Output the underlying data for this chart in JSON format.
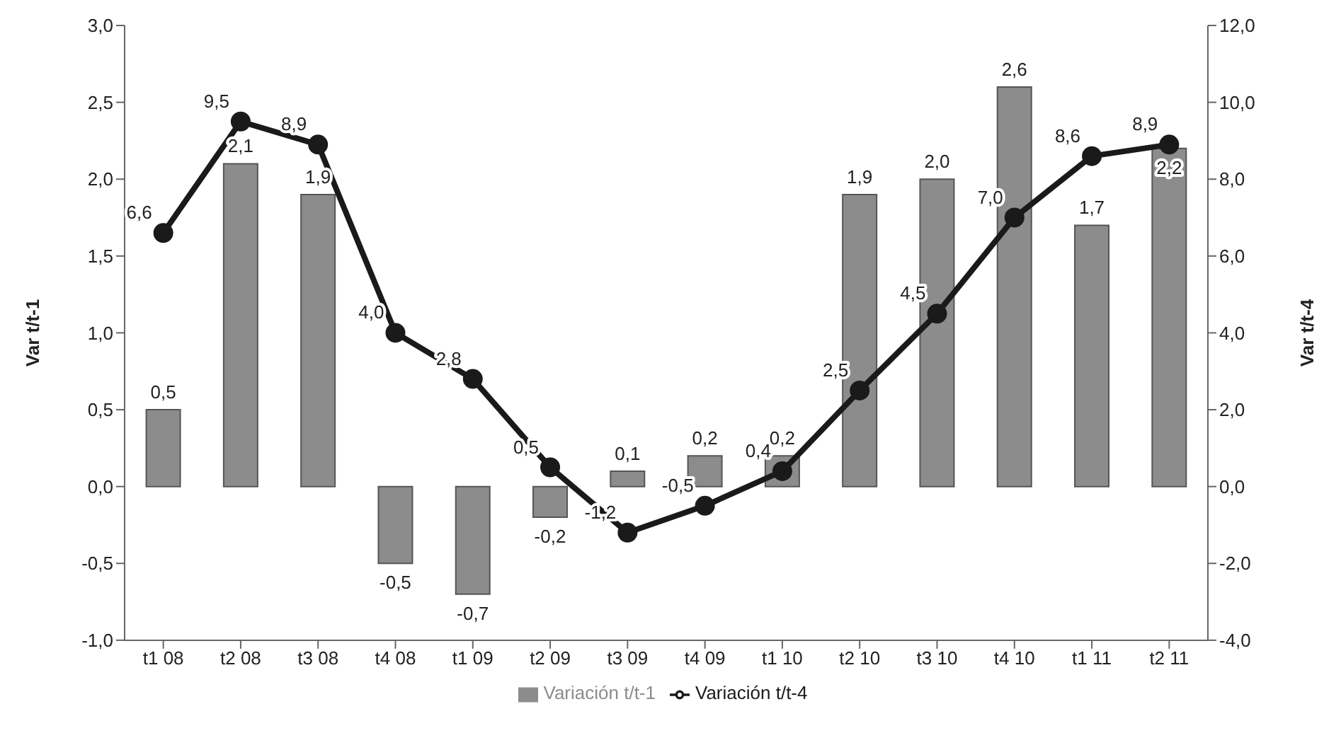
{
  "chart_data": {
    "type": "bar",
    "categories": [
      "t1 08",
      "t2 08",
      "t3 08",
      "t4 08",
      "t1 09",
      "t2 09",
      "t3 09",
      "t4 09",
      "t1 10",
      "t2 10",
      "t3 10",
      "t4 10",
      "t1 11",
      "t2 11"
    ],
    "series": [
      {
        "name": "Variación t/t-1",
        "color": "#8c8c8c",
        "values": [
          0.5,
          2.1,
          1.9,
          -0.5,
          -0.7,
          -0.2,
          0.1,
          0.2,
          0.2,
          1.9,
          2.0,
          2.6,
          1.7,
          2.2
        ],
        "value_labels": [
          "0,5",
          "2,1",
          "1,9",
          "-0,5",
          "-0,7",
          "-0,2",
          "0,1",
          "0,2",
          "0,2",
          "1,9",
          "2,0",
          "2,6",
          "1,7",
          "2,2"
        ]
      },
      {
        "name": "Variación t/t-4",
        "type": "line",
        "axis": "y2",
        "color": "#1a1a1a",
        "marker": "circle",
        "values": [
          6.6,
          9.5,
          8.9,
          4.0,
          2.8,
          0.5,
          -1.2,
          -0.5,
          0.4,
          2.5,
          4.5,
          7.0,
          8.6,
          8.9
        ],
        "value_labels": [
          "6,6",
          "9,5",
          "8,9",
          "4,0",
          "2,8",
          "0,5",
          "-1,2",
          "-0,5",
          "0,4",
          "2,5",
          "4,5",
          "7,0",
          "8,6",
          "8,9"
        ]
      }
    ],
    "ylabel": "Var t/t-1",
    "y2label": "Var t/t-4",
    "ylim": [
      -1.0,
      3.0
    ],
    "yticks": [
      {
        "value": -1.0,
        "label": "-1,0"
      },
      {
        "value": -0.5,
        "label": "-0,5"
      },
      {
        "value": 0,
        "label": "0,0"
      },
      {
        "value": 0.5,
        "label": "0,5"
      },
      {
        "value": 1.0,
        "label": "1,0"
      },
      {
        "value": 1.5,
        "label": "1,5"
      },
      {
        "value": 2.0,
        "label": "2,0"
      },
      {
        "value": 2.5,
        "label": "2,5"
      },
      {
        "value": 3.0,
        "label": "3,0"
      }
    ],
    "y2lim": [
      -4.0,
      12.0
    ],
    "y2ticks": [
      {
        "value": -4.0,
        "label": "-4,0"
      },
      {
        "value": -2.0,
        "label": "-2,0"
      },
      {
        "value": 0,
        "label": "0,0"
      },
      {
        "value": 2.0,
        "label": "2,0"
      },
      {
        "value": 4.0,
        "label": "4,0"
      },
      {
        "value": 6.0,
        "label": "6,0"
      },
      {
        "value": 8.0,
        "label": "8,0"
      },
      {
        "value": 10.0,
        "label": "10,0"
      },
      {
        "value": 12.0,
        "label": "12,0"
      }
    ],
    "grid": false,
    "legend": "bottom"
  }
}
